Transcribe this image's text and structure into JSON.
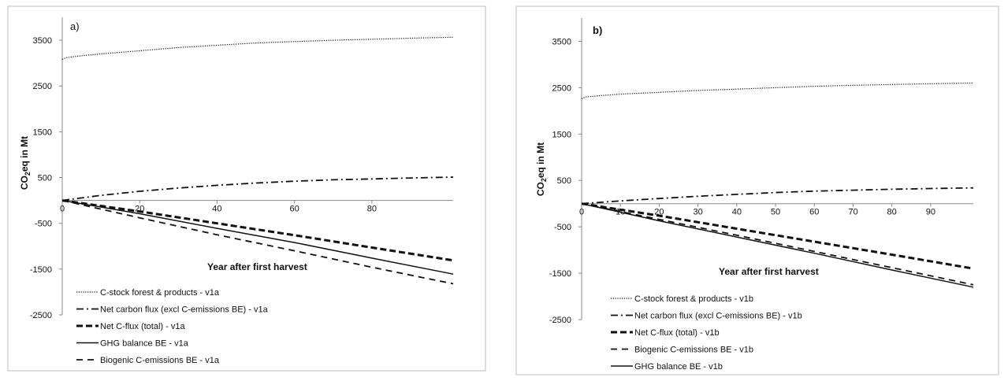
{
  "chart_data": [
    {
      "type": "line",
      "panel_label": "a)",
      "xlabel": "Year after first harvest",
      "ylabel": {
        "main": "CO",
        "sub": "2",
        "rest": "eq in Mt"
      },
      "ylim": [
        -2500,
        4000
      ],
      "xlim": [
        0,
        101
      ],
      "yticks": [
        3500,
        2500,
        1500,
        500,
        -500,
        -1500,
        -2500
      ],
      "xticks": [
        0,
        20,
        40,
        60,
        80
      ],
      "grid": false,
      "legend_position": "bottom-left",
      "series": [
        {
          "name": "C-stock forest & products - v1a",
          "style": "dotted",
          "x": [
            0,
            1,
            5,
            10,
            20,
            30,
            40,
            50,
            60,
            70,
            80,
            90,
            101
          ],
          "y": [
            3080,
            3120,
            3160,
            3200,
            3270,
            3340,
            3390,
            3440,
            3470,
            3500,
            3520,
            3545,
            3565
          ]
        },
        {
          "name": "Net carbon flux (excl C-emissions BE) - v1a",
          "style": "dashdot",
          "x": [
            0,
            10,
            20,
            30,
            40,
            50,
            60,
            70,
            80,
            90,
            101
          ],
          "y": [
            0,
            110,
            200,
            270,
            330,
            380,
            420,
            450,
            470,
            490,
            510
          ]
        },
        {
          "name": "Net C-flux (total) - v1a",
          "style": "thickdash",
          "x": [
            0,
            20,
            40,
            60,
            80,
            101
          ],
          "y": [
            0,
            -240,
            -500,
            -760,
            -1030,
            -1310
          ]
        },
        {
          "name": "GHG balance BE - v1a",
          "style": "solid",
          "x": [
            0,
            20,
            40,
            60,
            80,
            101
          ],
          "y": [
            0,
            -290,
            -610,
            -920,
            -1260,
            -1610
          ]
        },
        {
          "name": "Biogenic C-emissions BE - v1a",
          "style": "dash",
          "x": [
            0,
            20,
            40,
            60,
            80,
            101
          ],
          "y": [
            0,
            -380,
            -750,
            -1100,
            -1460,
            -1820
          ]
        }
      ]
    },
    {
      "type": "line",
      "panel_label": "b)",
      "xlabel": "Year after first harvest",
      "ylabel": {
        "main": "CO",
        "sub": "2",
        "rest": "eq in Mt"
      },
      "ylim": [
        -2500,
        4000
      ],
      "xlim": [
        0,
        101
      ],
      "yticks": [
        3500,
        2500,
        1500,
        500,
        -500,
        -1500,
        -2500
      ],
      "xticks": [
        0,
        10,
        20,
        30,
        40,
        50,
        60,
        70,
        80,
        90
      ],
      "grid": false,
      "legend_position": "bottom-left",
      "series": [
        {
          "name": "C-stock forest & products - v1b",
          "style": "dotted",
          "x": [
            0,
            1,
            5,
            10,
            20,
            30,
            40,
            50,
            60,
            70,
            80,
            90,
            101
          ],
          "y": [
            2260,
            2300,
            2330,
            2360,
            2400,
            2440,
            2470,
            2500,
            2530,
            2550,
            2570,
            2585,
            2600
          ]
        },
        {
          "name": "Net carbon flux (excl C-emissions BE) - v1b",
          "style": "dashdot",
          "x": [
            0,
            10,
            20,
            30,
            40,
            50,
            60,
            70,
            80,
            90,
            101
          ],
          "y": [
            0,
            60,
            110,
            160,
            200,
            240,
            270,
            290,
            310,
            325,
            340
          ]
        },
        {
          "name": "Net C-flux (total) - v1b",
          "style": "thickdash",
          "x": [
            0,
            20,
            40,
            60,
            80,
            101
          ],
          "y": [
            0,
            -260,
            -540,
            -820,
            -1100,
            -1400
          ]
        },
        {
          "name": "Biogenic C-emissions BE - v1b",
          "style": "dash",
          "x": [
            0,
            20,
            40,
            60,
            80,
            101
          ],
          "y": [
            0,
            -340,
            -680,
            -1030,
            -1380,
            -1750
          ]
        },
        {
          "name": "GHG balance BE - v1b",
          "style": "solid",
          "x": [
            0,
            20,
            40,
            60,
            80,
            101
          ],
          "y": [
            0,
            -370,
            -720,
            -1070,
            -1430,
            -1800
          ]
        }
      ]
    }
  ]
}
